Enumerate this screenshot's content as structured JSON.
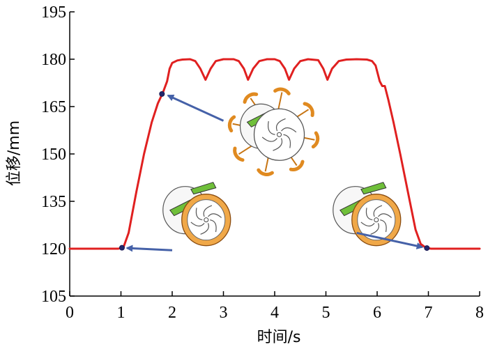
{
  "chart_data": {
    "type": "line",
    "title": "",
    "xlabel": "时间/s",
    "ylabel": "位移/mm",
    "xlim": [
      0,
      8
    ],
    "ylim": [
      105,
      195
    ],
    "xticks": [
      0,
      1,
      2,
      3,
      4,
      5,
      6,
      7,
      8
    ],
    "yticks": [
      105,
      120,
      135,
      150,
      165,
      180,
      195
    ],
    "grid": false,
    "series": [
      {
        "color": "#e02020",
        "points": [
          [
            0,
            120
          ],
          [
            0.5,
            120
          ],
          [
            0.95,
            120
          ],
          [
            1.05,
            120.5
          ],
          [
            1.15,
            125
          ],
          [
            1.3,
            138
          ],
          [
            1.45,
            150
          ],
          [
            1.6,
            160
          ],
          [
            1.72,
            166
          ],
          [
            1.82,
            169.5
          ],
          [
            1.9,
            173
          ],
          [
            1.95,
            177
          ],
          [
            2.0,
            178.8
          ],
          [
            2.1,
            179.6
          ],
          [
            2.2,
            179.9
          ],
          [
            2.35,
            180
          ],
          [
            2.45,
            179.4
          ],
          [
            2.55,
            177
          ],
          [
            2.65,
            173.5
          ],
          [
            2.75,
            177
          ],
          [
            2.85,
            179.4
          ],
          [
            3.0,
            180
          ],
          [
            3.2,
            180
          ],
          [
            3.3,
            179.4
          ],
          [
            3.4,
            177
          ],
          [
            3.48,
            173.5
          ],
          [
            3.58,
            177
          ],
          [
            3.7,
            179.4
          ],
          [
            3.85,
            180
          ],
          [
            4.0,
            180
          ],
          [
            4.1,
            179.4
          ],
          [
            4.2,
            177
          ],
          [
            4.28,
            173.5
          ],
          [
            4.38,
            177
          ],
          [
            4.5,
            179.4
          ],
          [
            4.65,
            180
          ],
          [
            4.85,
            179.7
          ],
          [
            4.95,
            177
          ],
          [
            5.03,
            173.5
          ],
          [
            5.12,
            177
          ],
          [
            5.25,
            179.4
          ],
          [
            5.4,
            179.9
          ],
          [
            5.6,
            180
          ],
          [
            5.8,
            179.9
          ],
          [
            5.9,
            179.4
          ],
          [
            5.97,
            178
          ],
          [
            6.05,
            173
          ],
          [
            6.1,
            171.5
          ],
          [
            6.15,
            171.5
          ],
          [
            6.22,
            167
          ],
          [
            6.32,
            160
          ],
          [
            6.45,
            150
          ],
          [
            6.6,
            138
          ],
          [
            6.75,
            126
          ],
          [
            6.85,
            121.5
          ],
          [
            6.95,
            120.3
          ],
          [
            7.05,
            120
          ],
          [
            7.5,
            120
          ],
          [
            8,
            120
          ]
        ]
      }
    ],
    "markers": [
      [
        1.02,
        120.3
      ],
      [
        1.8,
        169
      ],
      [
        6.97,
        120.2
      ]
    ],
    "annotations": [
      {
        "from": [
          2.0,
          119.5
        ],
        "to": [
          1.12,
          120.2
        ],
        "color": "#4561a8"
      },
      {
        "from": [
          3.0,
          160.5
        ],
        "to": [
          1.92,
          168.5
        ],
        "color": "#4561a8"
      },
      {
        "from": [
          5.6,
          125
        ],
        "to": [
          6.88,
          120.5
        ],
        "color": "#4561a8"
      }
    ],
    "insets": [
      {
        "kind": "wheel-compact",
        "center": [
          2.5,
          130
        ]
      },
      {
        "kind": "wheel-deployed",
        "center": [
          3.98,
          157
        ]
      },
      {
        "kind": "wheel-compact",
        "center": [
          5.82,
          130
        ]
      }
    ]
  }
}
